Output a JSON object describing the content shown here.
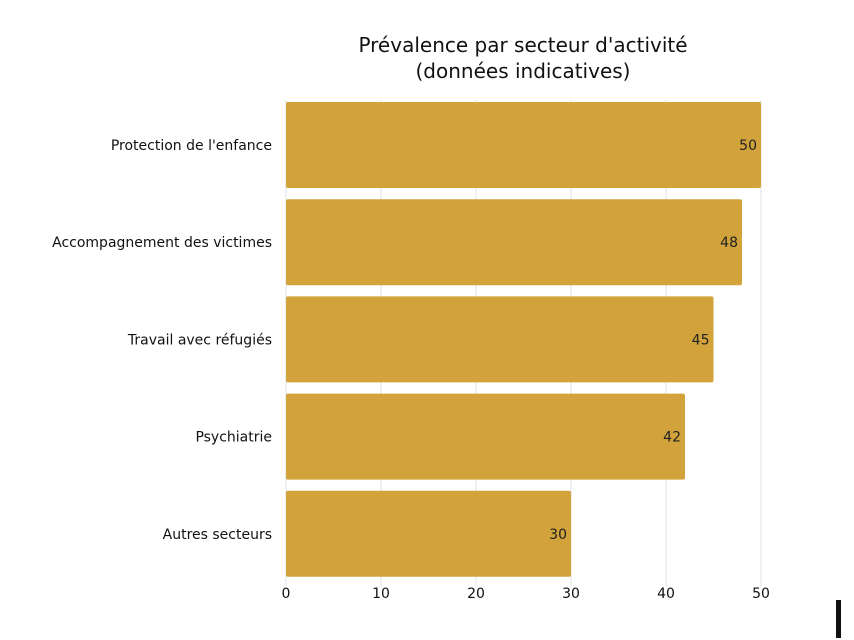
{
  "chart_data": {
    "type": "bar",
    "orientation": "horizontal",
    "title_lines": [
      "Prévalence par secteur d'activité",
      "(données indicatives)"
    ],
    "categories": [
      "Protection de l'enfance",
      "Accompagnement des victimes",
      "Travail avec réfugiés",
      "Psychiatrie",
      "Autres secteurs"
    ],
    "values": [
      50,
      48,
      45,
      42,
      30
    ],
    "xlim": [
      0,
      50
    ],
    "xticks": [
      0,
      10,
      20,
      30,
      40,
      50
    ],
    "xlabel": "",
    "ylabel": "",
    "grid": "vertical",
    "data_labels": true,
    "bar_color": "#D1A33A"
  }
}
